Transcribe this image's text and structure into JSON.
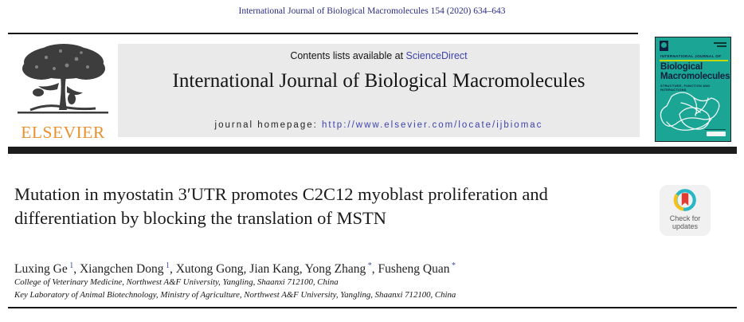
{
  "citation": "International Journal of Biological Macromolecules 154 (2020) 634–643",
  "masthead": {
    "contents_prefix": "Contents lists available at ",
    "sciencedirect_label": "ScienceDirect",
    "journal_title": "International Journal of Biological Macromolecules",
    "homepage_prefix": "journal homepage: ",
    "homepage_url": "http://www.elsevier.com/locate/ijbiomac",
    "elsevier_wordmark": "ELSEVIER"
  },
  "cover": {
    "kicker": "INTERNATIONAL JOURNAL OF",
    "title": "Biological Macromolecules",
    "subtitle": "STRUCTURE, FUNCTION AND INTERACTIONS"
  },
  "article": {
    "title_lines": [
      "Mutation in myostatin 3′UTR promotes C2C12 myoblast proliferation and",
      "differentiation by blocking the translation of MSTN"
    ],
    "authors": [
      {
        "name": "Luxing Ge",
        "mark": "1"
      },
      {
        "name": "Xiangchen Dong",
        "mark": "1"
      },
      {
        "name": "Xutong Gong",
        "mark": ""
      },
      {
        "name": "Jian Kang",
        "mark": ""
      },
      {
        "name": "Yong Zhang",
        "mark": "*"
      },
      {
        "name": "Fusheng Quan",
        "mark": "*"
      }
    ],
    "affiliations": [
      "College of Veterinary Medicine, Northwest A&F University, Yangling, Shaanxi 712100, China",
      "Key Laboratory of Animal Biotechnology, Ministry of Agriculture, Northwest A&F University, Yangling, Shaanxi 712100, China"
    ]
  },
  "badge": {
    "label_line1": "Check for",
    "label_line2": "updates"
  },
  "colors": {
    "link_blue": "#3f43ad",
    "citation_navy": "#2b2e83",
    "elsevier_orange": "#e9912e",
    "cover_teal": "#1aa594",
    "cover_accent_lime": "#c3d600",
    "crossmark_red": "#e03c31",
    "crossmark_teal": "#28b7c6",
    "crossmark_yellow": "#f2c218"
  }
}
